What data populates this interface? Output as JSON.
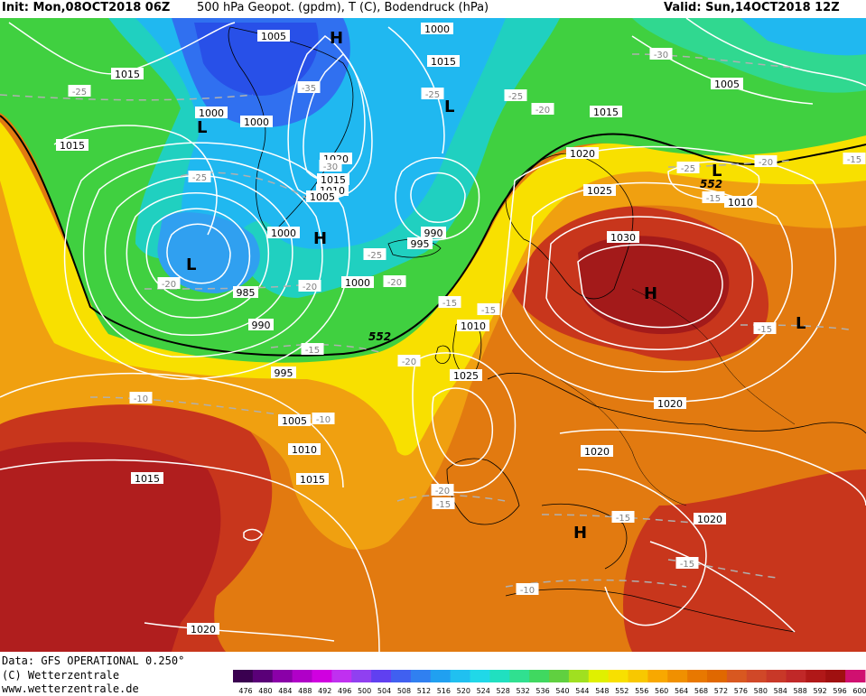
{
  "header": {
    "init": "Init: Mon,08OCT2018 06Z",
    "title": "500 hPa Geopot. (gpdm), T (C), Bodendruck (hPa)",
    "valid": "Valid: Sun,14OCT2018 12Z"
  },
  "footer": {
    "data_source": "Data: GFS OPERATIONAL 0.250°",
    "copyright": "(C) Wetterzentrale",
    "website": "www.wetterzentrale.de"
  },
  "colorbar": {
    "ticks": [
      "476",
      "480",
      "484",
      "488",
      "492",
      "496",
      "500",
      "504",
      "508",
      "512",
      "516",
      "520",
      "524",
      "528",
      "532",
      "536",
      "540",
      "544",
      "548",
      "552",
      "556",
      "560",
      "564",
      "568",
      "572",
      "576",
      "580",
      "584",
      "588",
      "592",
      "596",
      "600"
    ],
    "colors": [
      "#3a0050",
      "#5a0078",
      "#8a00a8",
      "#b000c8",
      "#d000e0",
      "#c030f0",
      "#9040f0",
      "#6040f0",
      "#4060f0",
      "#3080f0",
      "#20a0f0",
      "#20c0f0",
      "#20d8e8",
      "#20e0c0",
      "#30e090",
      "#40d860",
      "#60d040",
      "#a0e020",
      "#e0f000",
      "#f8e000",
      "#f8c800",
      "#f8a800",
      "#f09000",
      "#e87800",
      "#e06800",
      "#d85820",
      "#d04828",
      "#c83828",
      "#c02828",
      "#b01818",
      "#a01010",
      "#d01070"
    ]
  },
  "map": {
    "contour_552_label": "552",
    "highs": [
      {
        "label": "H"
      },
      {
        "label": "H"
      },
      {
        "label": "H"
      },
      {
        "label": "H"
      }
    ],
    "lows": [
      {
        "label": "L"
      },
      {
        "label": "L"
      },
      {
        "label": "L"
      },
      {
        "label": "L"
      },
      {
        "label": "L"
      }
    ],
    "pressure_labels": [
      "1005",
      "1015",
      "1000",
      "1000",
      "1020",
      "1015",
      "1010",
      "1005",
      "1000",
      "985",
      "990",
      "995",
      "990",
      "995",
      "1000",
      "1000",
      "1015",
      "1015",
      "1020",
      "1025",
      "1030",
      "1005",
      "1010",
      "1015",
      "1010",
      "1025",
      "1020",
      "1020",
      "1015",
      "1005",
      "1010",
      "1015",
      "1020",
      "1020"
    ],
    "temp_labels": [
      "-25",
      "-35",
      "-25",
      "-25",
      "-20",
      "-25",
      "-30",
      "-25",
      "-20",
      "-15",
      "-15",
      "-15",
      "-20",
      "-10",
      "-10",
      "-20",
      "-15",
      "-30",
      "-25",
      "-15",
      "-20",
      "-15",
      "-20",
      "-15",
      "-10",
      "-15",
      "-20",
      "-15"
    ]
  }
}
